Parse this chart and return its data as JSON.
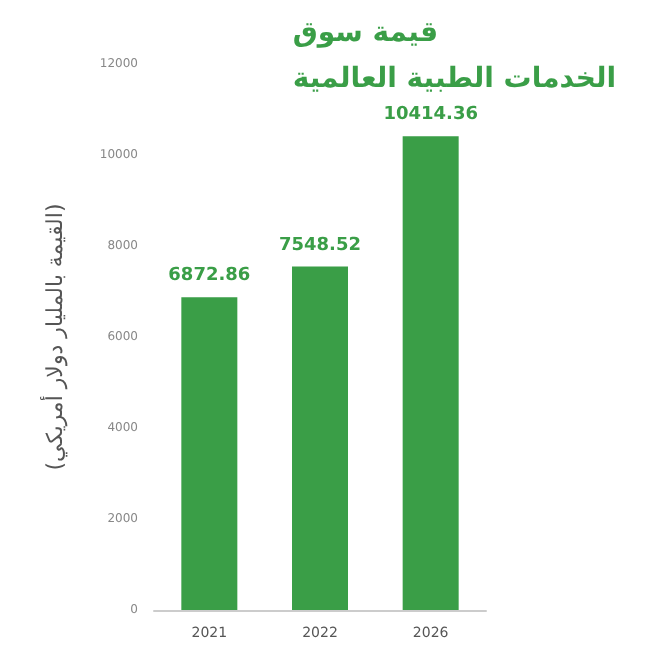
{
  "chart_data": {
    "type": "bar",
    "title": "قيمة سوق\nالخدمات الطبية العالمية",
    "ylabel": "(القيمة بالمليار دولار أمريكي)",
    "categories": [
      "2021",
      "2022",
      "2026"
    ],
    "values": [
      6872.86,
      7548.52,
      10414.36
    ],
    "color": "#3a9e47",
    "ylim": [
      0,
      12000
    ],
    "yticks": [
      0,
      2000,
      4000,
      6000,
      8000,
      10000,
      12000
    ],
    "grid": false,
    "data_labels": true
  }
}
